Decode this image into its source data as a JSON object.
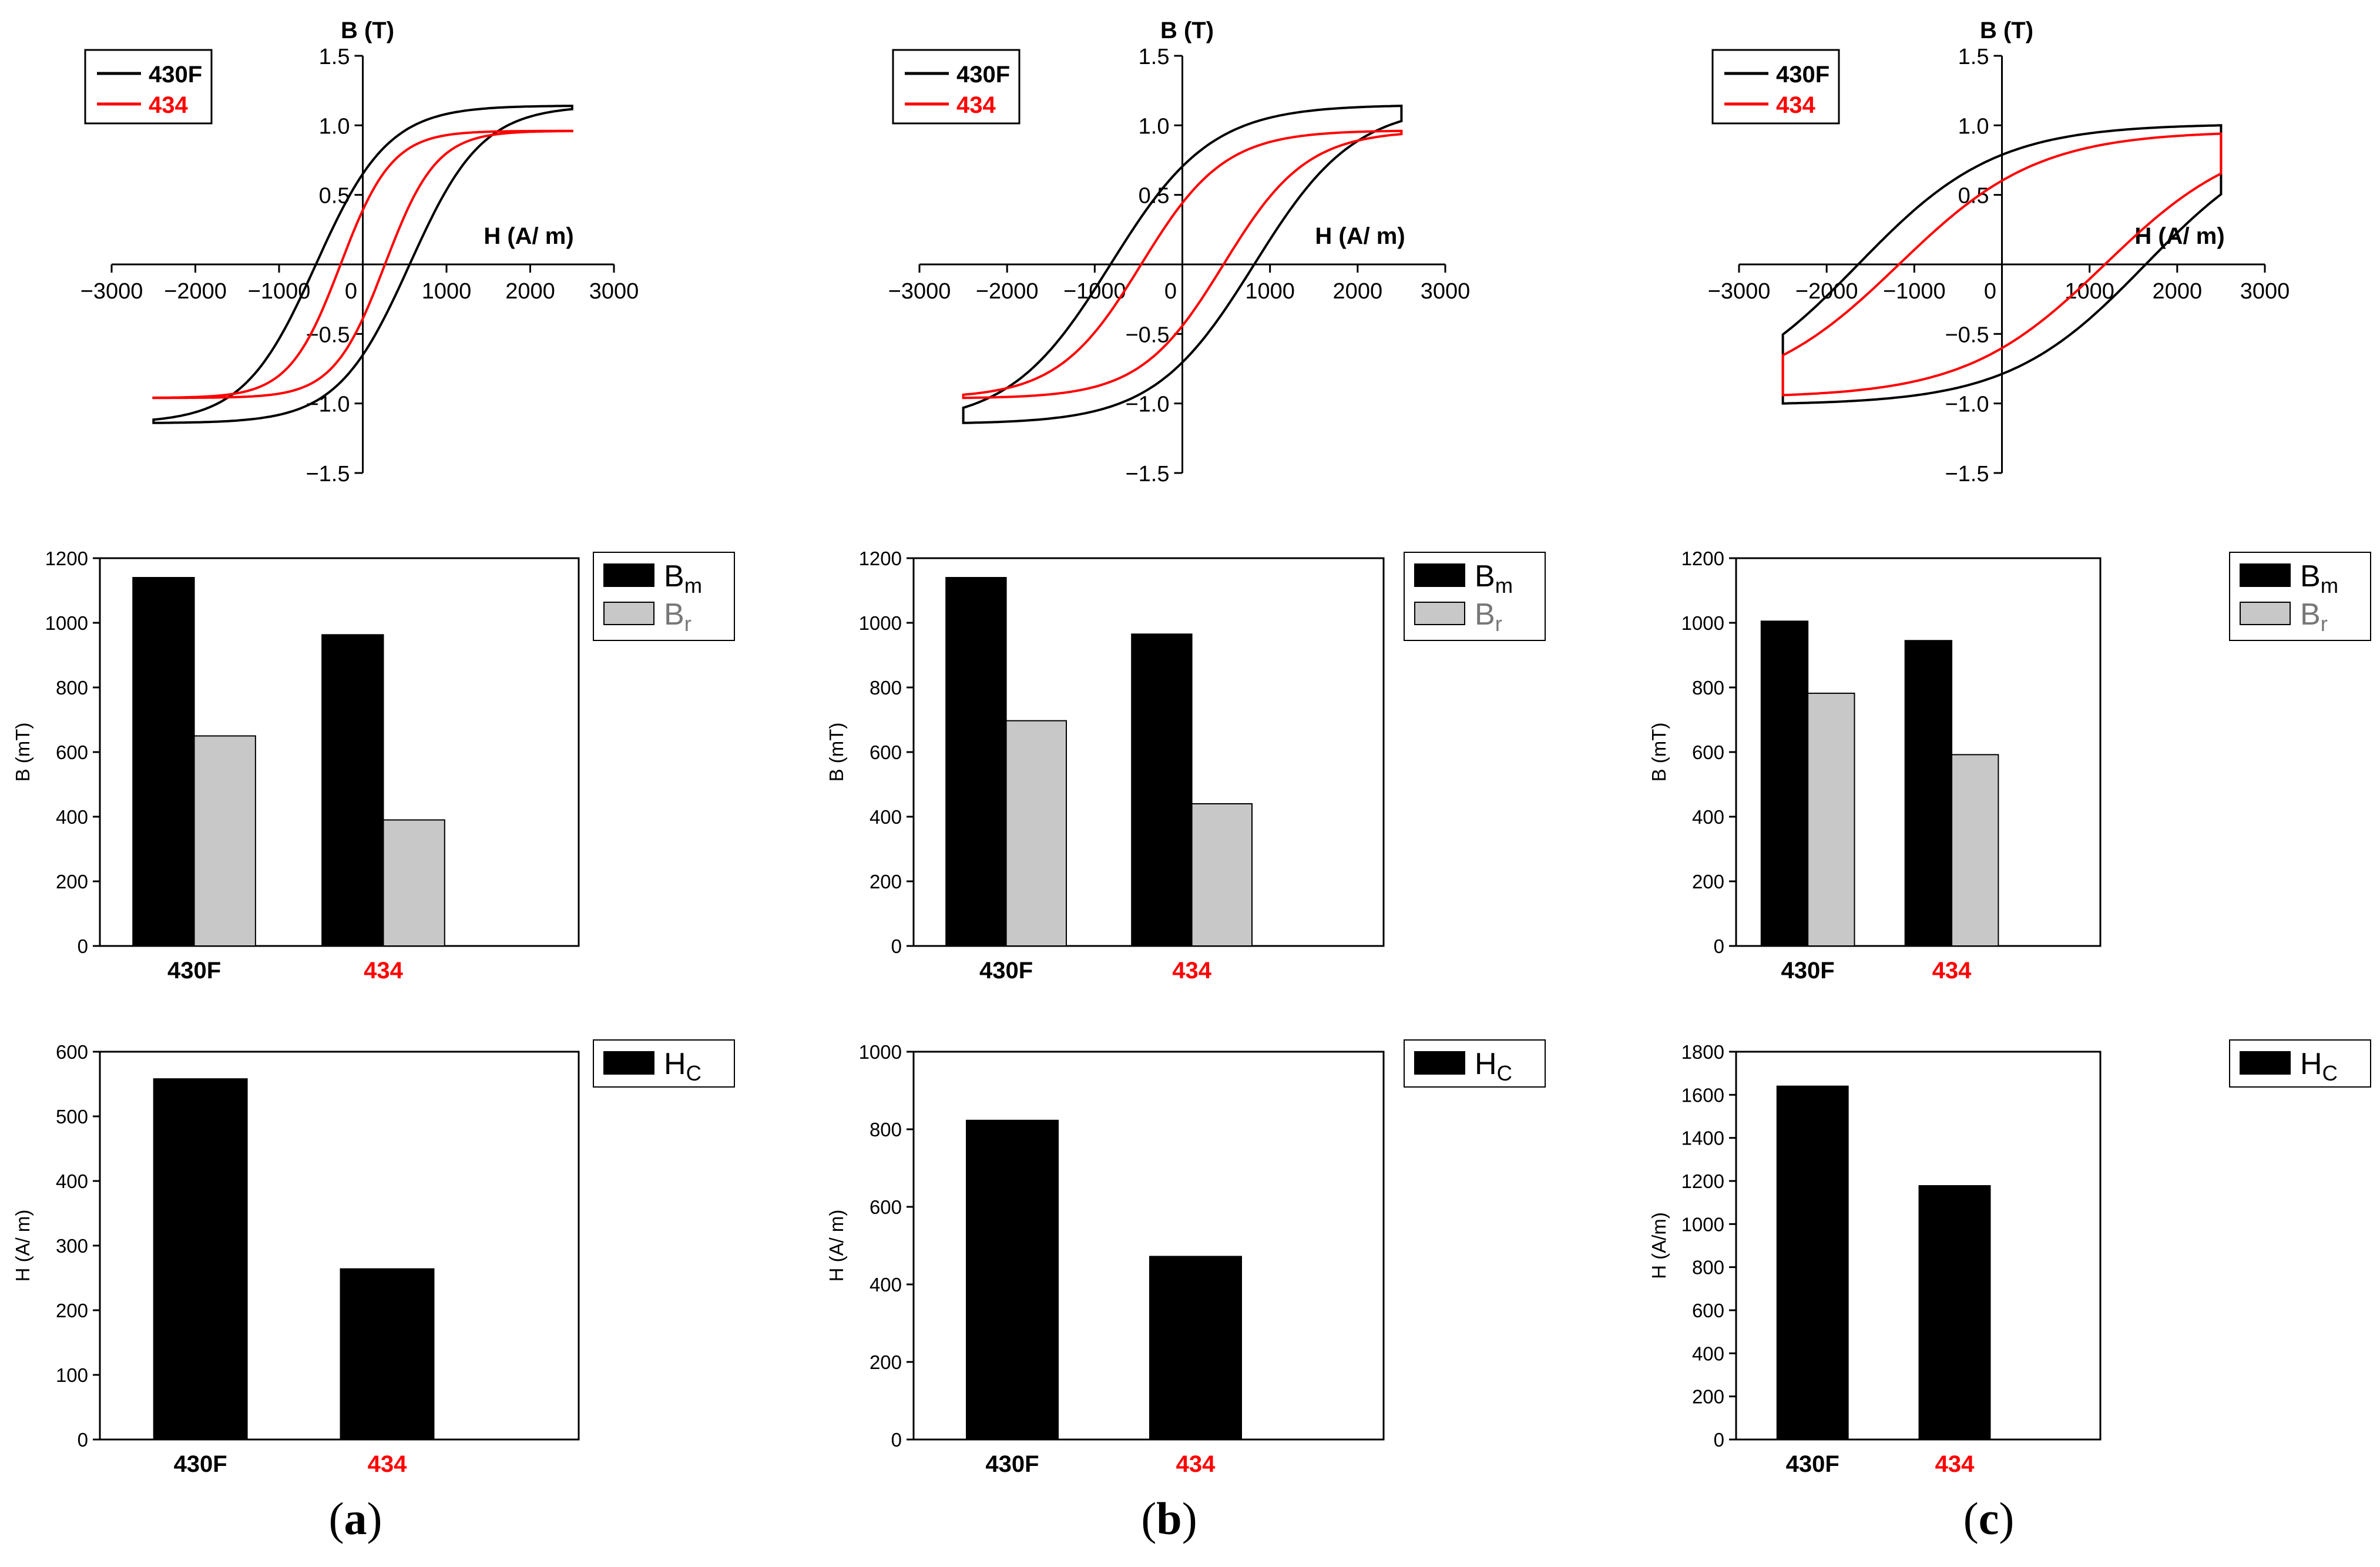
{
  "colors": {
    "430F": "#000000",
    "434": "#ff0000",
    "Br_fill": "#c8c8c8",
    "axis": "#000000"
  },
  "panels": [
    {
      "label": "a",
      "caption_open": "(",
      "caption_close": ")"
    },
    {
      "label": "b",
      "caption_open": "(",
      "caption_close": ")"
    },
    {
      "label": "c",
      "caption_open": "(",
      "caption_close": ")"
    }
  ],
  "chart_data": [
    {
      "panel": "a",
      "type": "line",
      "chart": "hysteresis",
      "xlabel": "H (A/ m)",
      "ylabel": "B (T)",
      "xlim": [
        -3000,
        3000
      ],
      "ylim": [
        -1.5,
        1.5
      ],
      "xticks": [
        -3000,
        -2000,
        -1000,
        0,
        1000,
        2000,
        3000
      ],
      "xtick_labels": [
        "−3000",
        "−2000",
        "−1000",
        "0",
        "1000",
        "2000",
        "3000"
      ],
      "yticks": [
        -1.5,
        -1.0,
        -0.5,
        0.5,
        1.0,
        1.5
      ],
      "ytick_labels": [
        "−1.5",
        "−1.0",
        "−0.5",
        "0.5",
        "1.0",
        "1.5"
      ],
      "legend": [
        "430F",
        "434"
      ],
      "legend_position": "top-left",
      "series": [
        {
          "name": "430F",
          "Hmax": 2500,
          "Bmax": 1.14,
          "Br": 0.65,
          "Hc": 560
        },
        {
          "name": "434",
          "Hmax": 2500,
          "Bmax": 0.96,
          "Br": 0.39,
          "Hc": 265
        }
      ]
    },
    {
      "panel": "a",
      "type": "bar",
      "chart": "B",
      "categories": [
        "430F",
        "434"
      ],
      "ylabel": "B (mT)",
      "ylim": [
        0,
        1200
      ],
      "yticks": [
        0,
        200,
        400,
        600,
        800,
        1000,
        1200
      ],
      "legend_position": "top-right",
      "series": [
        {
          "name": "B",
          "sub": "m",
          "values": [
            1140,
            963
          ]
        },
        {
          "name": "B",
          "sub": "r",
          "values": [
            650,
            390
          ]
        }
      ]
    },
    {
      "panel": "a",
      "type": "bar",
      "chart": "H",
      "categories": [
        "430F",
        "434"
      ],
      "ylabel": "H (A/ m)",
      "ylim": [
        0,
        600
      ],
      "yticks": [
        0,
        100,
        200,
        300,
        400,
        500,
        600
      ],
      "legend_position": "top-right",
      "series": [
        {
          "name": "H",
          "sub": "C",
          "values": [
            558,
            264
          ]
        }
      ]
    },
    {
      "panel": "b",
      "type": "line",
      "chart": "hysteresis",
      "xlabel": "H (A/ m)",
      "ylabel": "B (T)",
      "xlim": [
        -3000,
        3000
      ],
      "ylim": [
        -1.5,
        1.5
      ],
      "xticks": [
        -3000,
        -2000,
        -1000,
        0,
        1000,
        2000,
        3000
      ],
      "xtick_labels": [
        "−3000",
        "−2000",
        "−1000",
        "0",
        "1000",
        "2000",
        "3000"
      ],
      "yticks": [
        -1.5,
        -1.0,
        -0.5,
        0.5,
        1.0,
        1.5
      ],
      "ytick_labels": [
        "−1.5",
        "−1.0",
        "−0.5",
        "0.5",
        "1.0",
        "1.5"
      ],
      "legend": [
        "430F",
        "434"
      ],
      "legend_position": "top-left",
      "series": [
        {
          "name": "430F",
          "Hmax": 2500,
          "Bmax": 1.14,
          "Br": 0.7,
          "Hc": 820
        },
        {
          "name": "434",
          "Hmax": 2500,
          "Bmax": 0.96,
          "Br": 0.44,
          "Hc": 470
        }
      ]
    },
    {
      "panel": "b",
      "type": "bar",
      "chart": "B",
      "categories": [
        "430F",
        "434"
      ],
      "ylabel": "B (mT)",
      "ylim": [
        0,
        1200
      ],
      "yticks": [
        0,
        200,
        400,
        600,
        800,
        1000,
        1200
      ],
      "legend_position": "top-right",
      "series": [
        {
          "name": "B",
          "sub": "m",
          "values": [
            1140,
            965
          ]
        },
        {
          "name": "B",
          "sub": "r",
          "values": [
            697,
            440
          ]
        }
      ]
    },
    {
      "panel": "b",
      "type": "bar",
      "chart": "H",
      "categories": [
        "430F",
        "434"
      ],
      "ylabel": "H (A/ m)",
      "ylim": [
        0,
        1000
      ],
      "yticks": [
        0,
        200,
        400,
        600,
        800,
        1000
      ],
      "legend_position": "top-right",
      "series": [
        {
          "name": "H",
          "sub": "C",
          "values": [
            823,
            472
          ]
        }
      ]
    },
    {
      "panel": "c",
      "type": "line",
      "chart": "hysteresis",
      "xlabel": "H (A/ m)",
      "ylabel": "B (T)",
      "xlim": [
        -3000,
        3000
      ],
      "ylim": [
        -1.5,
        1.5
      ],
      "xticks": [
        -3000,
        -2000,
        -1000,
        0,
        1000,
        2000,
        3000
      ],
      "xtick_labels": [
        "−3000",
        "−2000",
        "−1000",
        "0",
        "1000",
        "2000",
        "3000"
      ],
      "yticks": [
        -1.5,
        -1.0,
        -0.5,
        0.5,
        1.0,
        1.5
      ],
      "ytick_labels": [
        "−1.5",
        "−1.0",
        "−0.5",
        "0.5",
        "1.0",
        "1.5"
      ],
      "legend": [
        "430F",
        "434"
      ],
      "legend_position": "top-left",
      "series": [
        {
          "name": "430F",
          "Hmax": 2500,
          "Bmax": 1.0,
          "Br": 0.78,
          "Hc": 1640
        },
        {
          "name": "434",
          "Hmax": 2500,
          "Bmax": 0.94,
          "Br": 0.59,
          "Hc": 1175
        }
      ]
    },
    {
      "panel": "c",
      "type": "bar",
      "chart": "B",
      "categories": [
        "430F",
        "434"
      ],
      "ylabel": "B (mT)",
      "ylim": [
        0,
        1200
      ],
      "yticks": [
        0,
        200,
        400,
        600,
        800,
        1000,
        1200
      ],
      "legend_position": "top-right",
      "series": [
        {
          "name": "B",
          "sub": "m",
          "values": [
            1005,
            945
          ]
        },
        {
          "name": "B",
          "sub": "r",
          "values": [
            782,
            592
          ]
        }
      ]
    },
    {
      "panel": "c",
      "type": "bar",
      "chart": "H",
      "categories": [
        "430F",
        "434"
      ],
      "ylabel": "H (A/m)",
      "ylim": [
        0,
        1800
      ],
      "yticks": [
        0,
        200,
        400,
        600,
        800,
        1000,
        1200,
        1400,
        1600,
        1800
      ],
      "legend_position": "top-right",
      "series": [
        {
          "name": "H",
          "sub": "C",
          "values": [
            1640,
            1178
          ]
        }
      ]
    }
  ]
}
